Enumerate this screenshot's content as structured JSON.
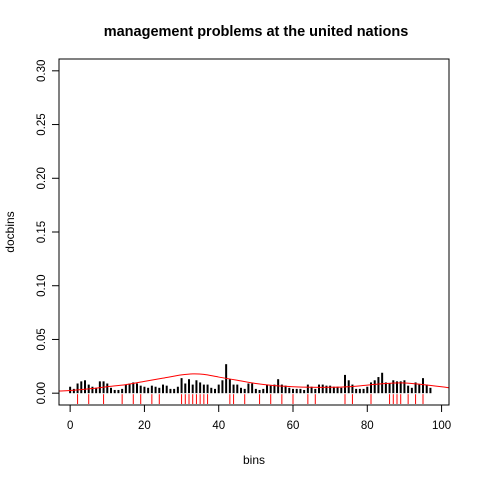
{
  "chart_data": {
    "type": "bar",
    "title": "management problems at the united nations",
    "xlabel": "bins",
    "ylabel": "docbins",
    "xlim": [
      -3,
      102
    ],
    "ylim": [
      -0.011,
      0.311
    ],
    "xticks": [
      0,
      20,
      40,
      60,
      80,
      100
    ],
    "xtick_labels": [
      "0",
      "20",
      "40",
      "60",
      "80",
      "100"
    ],
    "yticks": [
      0.0,
      0.05,
      0.1,
      0.15,
      0.2,
      0.25,
      0.3
    ],
    "ytick_labels": [
      "0.00",
      "0.05",
      "0.10",
      "0.15",
      "0.20",
      "0.25",
      "0.30"
    ],
    "grid": false,
    "series": [
      {
        "style": "histogram-spikes",
        "color": "#000000",
        "x": [
          0,
          1,
          2,
          3,
          4,
          5,
          6,
          7,
          8,
          9,
          10,
          11,
          12,
          13,
          14,
          15,
          16,
          17,
          18,
          19,
          20,
          21,
          22,
          23,
          24,
          25,
          26,
          27,
          28,
          29,
          30,
          31,
          32,
          33,
          34,
          35,
          36,
          37,
          38,
          39,
          40,
          41,
          42,
          43,
          44,
          45,
          46,
          47,
          48,
          49,
          50,
          51,
          52,
          53,
          54,
          55,
          56,
          57,
          58,
          59,
          60,
          61,
          62,
          63,
          64,
          65,
          66,
          67,
          68,
          69,
          70,
          71,
          72,
          73,
          74,
          75,
          76,
          77,
          78,
          79,
          80,
          81,
          82,
          83,
          84,
          85,
          86,
          87,
          88,
          89,
          90,
          91,
          92,
          93,
          94,
          95,
          96,
          97
        ],
        "values": [
          0.006,
          0.004,
          0.009,
          0.011,
          0.012,
          0.008,
          0.006,
          0.005,
          0.011,
          0.011,
          0.009,
          0.005,
          0.003,
          0.003,
          0.004,
          0.008,
          0.009,
          0.01,
          0.009,
          0.007,
          0.006,
          0.005,
          0.007,
          0.006,
          0.005,
          0.008,
          0.007,
          0.004,
          0.004,
          0.006,
          0.014,
          0.009,
          0.013,
          0.008,
          0.012,
          0.01,
          0.008,
          0.008,
          0.005,
          0.004,
          0.008,
          0.012,
          0.027,
          0.013,
          0.008,
          0.008,
          0.005,
          0.004,
          0.009,
          0.009,
          0.004,
          0.003,
          0.004,
          0.008,
          0.007,
          0.008,
          0.013,
          0.008,
          0.007,
          0.005,
          0.004,
          0.004,
          0.004,
          0.003,
          0.008,
          0.006,
          0.004,
          0.008,
          0.008,
          0.007,
          0.007,
          0.006,
          0.006,
          0.005,
          0.017,
          0.012,
          0.008,
          0.004,
          0.004,
          0.004,
          0.006,
          0.01,
          0.012,
          0.015,
          0.019,
          0.01,
          0.009,
          0.012,
          0.011,
          0.011,
          0.012,
          0.007,
          0.005,
          0.01,
          0.008,
          0.014,
          0.008,
          0.005
        ]
      },
      {
        "style": "smooth-line",
        "color": "#ff0000",
        "x": [
          -3,
          0,
          5,
          10,
          15,
          20,
          25,
          30,
          33,
          36,
          40,
          45,
          50,
          55,
          60,
          65,
          70,
          75,
          80,
          85,
          90,
          95,
          100,
          102
        ],
        "values": [
          0.002,
          0.0025,
          0.004,
          0.006,
          0.008,
          0.011,
          0.014,
          0.017,
          0.018,
          0.0175,
          0.015,
          0.012,
          0.009,
          0.007,
          0.006,
          0.0055,
          0.0055,
          0.006,
          0.0075,
          0.009,
          0.0095,
          0.008,
          0.006,
          0.005
        ]
      },
      {
        "style": "rug",
        "color": "#ff0000",
        "x": [
          2,
          5,
          9,
          14,
          17,
          19,
          22,
          24,
          30,
          31,
          32,
          33,
          34,
          35,
          36,
          37,
          43,
          44,
          47,
          51,
          54,
          57,
          60,
          64,
          66,
          74,
          76,
          81,
          86,
          87,
          88,
          89,
          91,
          93,
          95
        ]
      }
    ]
  }
}
